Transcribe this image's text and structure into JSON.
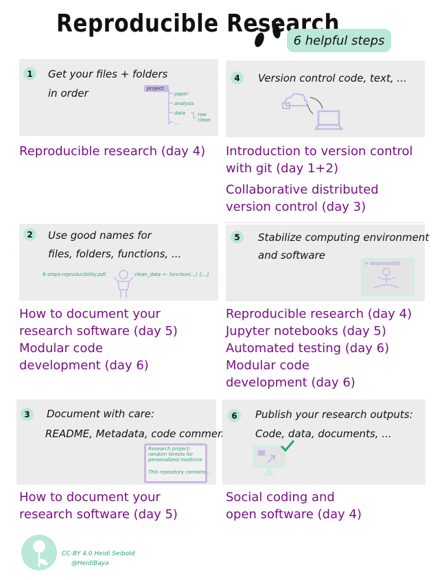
{
  "header": {
    "title": "Reproducible Research",
    "badge": "6 helpful steps"
  },
  "steps": [
    {
      "number": "1",
      "line1": "Get your files + folders",
      "line2": "in order"
    },
    {
      "number": "2",
      "line1": "Use good names for",
      "line2": "files, folders, functions, ..."
    },
    {
      "number": "3",
      "line1": "Document with care:",
      "line2": "README, Metadata, code comments, ..."
    },
    {
      "number": "4",
      "line1": "Version control code, text, ...",
      "line2": ""
    },
    {
      "number": "5",
      "line1": "Stabilize computing environment",
      "line2": "and software"
    },
    {
      "number": "6",
      "line1": "Publish your research outputs:",
      "line2": "Code, data, documents, ..."
    }
  ],
  "folder_tree": {
    "project": "project",
    "paper": "paper",
    "analysis": "analysis",
    "data": "data",
    "raw": "raw",
    "clean": "clean",
    "more": "..."
  },
  "naming": {
    "file": "6-steps-reproducibility.pdf",
    "function": "clean_data <- function(...) {...}"
  },
  "readme": {
    "line1": "Research project:",
    "line2": "random forests for",
    "line3": "personalized medicine",
    "line4": "This repository contains..."
  },
  "session_info": "> sessionInfo()",
  "courses": {
    "c1": [
      "Reproducible research (day 4)"
    ],
    "c2": [
      "How to document your",
      "research software (day 5)",
      "Modular code",
      "development (day 6)"
    ],
    "c3": [
      "How to document your",
      "research software (day 5)"
    ],
    "c4": [
      "Introduction to version control",
      "with git (day 1+2)",
      "Collaborative distributed",
      "version control (day 3)"
    ],
    "c5": [
      "Reproducible research (day 4)",
      "Jupyter notebooks (day 5)",
      "Automated testing (day 6)",
      "Modular code",
      "development (day 6)"
    ],
    "c6": [
      "Social coding and",
      "open software (day 4)"
    ]
  },
  "license": {
    "line1": "CC-BY 4.0  Heidi Seibold",
    "line2": "@HeidiBaya"
  },
  "colors": {
    "accent_green": "#b9e9d6",
    "course_purple": "#7a0f86",
    "card_grey": "#ececec",
    "illustration_lavender": "#c8b8e6"
  }
}
